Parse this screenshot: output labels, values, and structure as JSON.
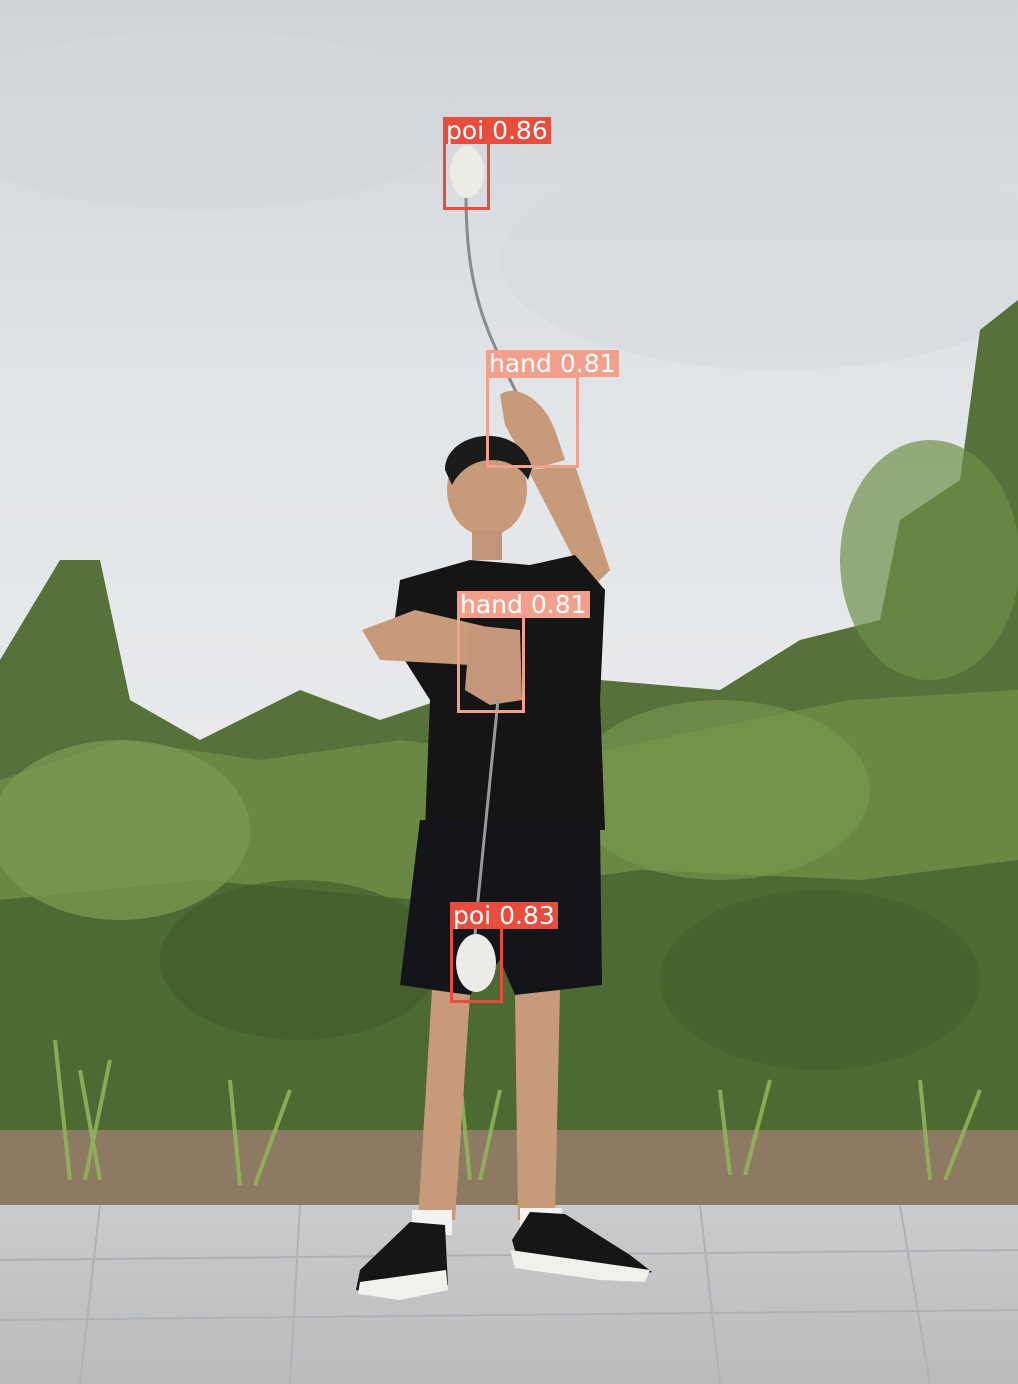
{
  "detections": [
    {
      "id": "poi-top",
      "label": "poi",
      "score": "0.86",
      "color": "#e74c3c"
    },
    {
      "id": "hand-upper",
      "label": "hand",
      "score": "0.81",
      "color": "#f2a08c"
    },
    {
      "id": "hand-lower",
      "label": "hand",
      "score": "0.81",
      "color": "#f2a08c"
    },
    {
      "id": "poi-bottom",
      "label": "poi",
      "score": "0.83",
      "color": "#e74c3c"
    }
  ],
  "scene_colors": {
    "sky": "#dde0e3",
    "foliage": "#5f7a3e",
    "pavement": "#c6c8ca",
    "clothing": "#151515",
    "skin": "#c79a7a"
  }
}
